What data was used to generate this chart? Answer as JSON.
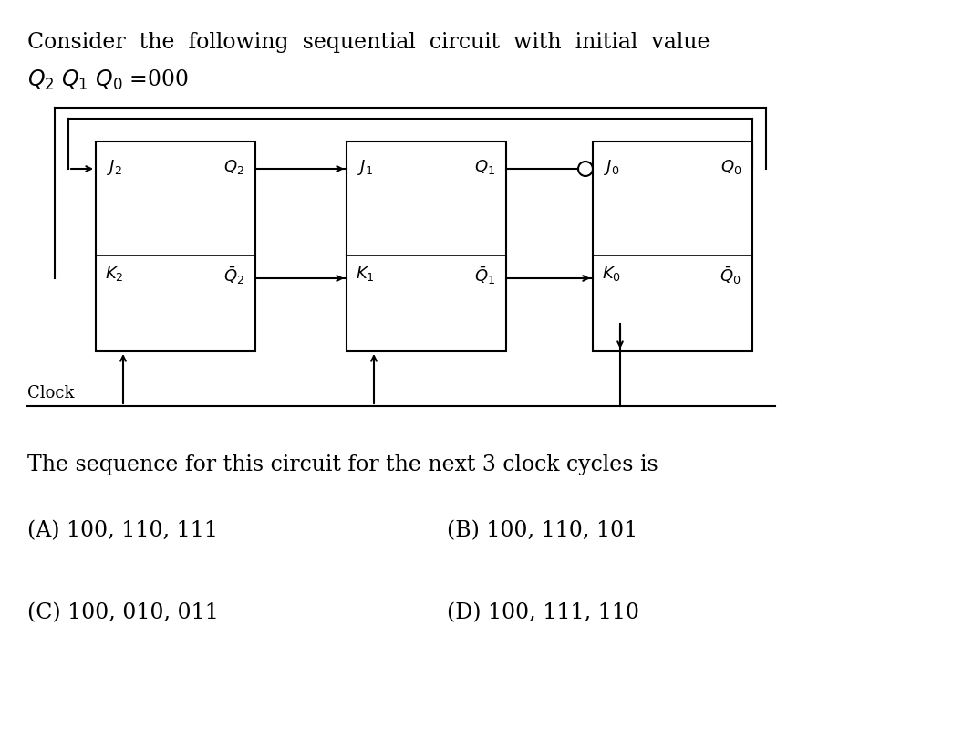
{
  "title_line1": "Consider  the  following  sequential  circuit  with  initial  value",
  "title_line2": "Q₂ Q₁ Q₀ =000",
  "question_text": "The sequence for this circuit for the next 3 clock cycles is",
  "option_A": "(A) 100, 110, 111",
  "option_B": "(B) 100, 110, 101",
  "option_C": "(C) 100, 010, 011",
  "option_D": "(D) 100, 111, 110",
  "bg_color": "#ffffff",
  "text_color": "#000000",
  "font_size_title": 17,
  "font_size_body": 17,
  "font_size_options": 17,
  "font_size_circuit": 14
}
